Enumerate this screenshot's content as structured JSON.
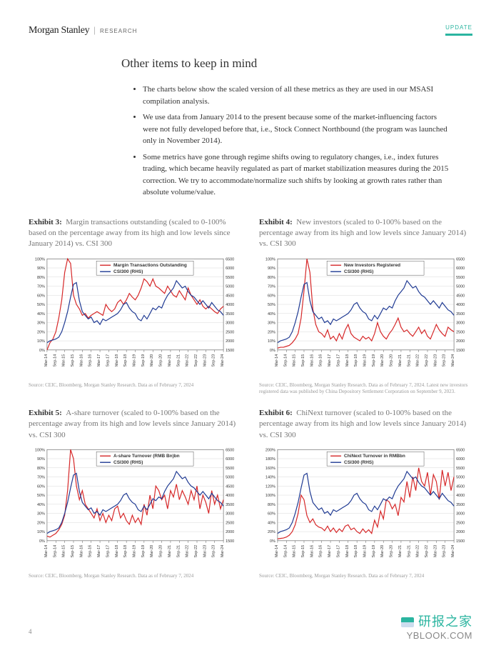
{
  "header": {
    "brand_main": "Morgan Stanley",
    "brand_sep": "|",
    "brand_sub": "RESEARCH",
    "badge": "UPDATE"
  },
  "section_title": "Other items to keep in mind",
  "bullets": [
    "The charts below show the scaled version of all these metrics as they are used in our MSASI compilation analysis.",
    "We use data from January 2014 to the present because some of the market-influencing factors were not fully developed before that, i.e., Stock Connect Northbound (the program was launched only in November 2014).",
    "Some metrics have gone through regime shifts owing to regulatory changes, i.e., index futures trading, which became heavily regulated as part of market stabilization measures during the 2015 correction. We try to accommodate/normalize such shifts by looking at growth rates rather than absolute volume/value."
  ],
  "chart_common": {
    "x_ticks": [
      "Mar-14",
      "Sep-14",
      "Mar-15",
      "Sep-15",
      "Mar-16",
      "Sep-16",
      "Mar-17",
      "Sep-17",
      "Mar-18",
      "Sep-18",
      "Mar-19",
      "Sep-19",
      "Mar-20",
      "Sep-20",
      "Mar-21",
      "Sep-21",
      "Mar-22",
      "Sep-22",
      "Mar-23",
      "Sep-23",
      "Mar-24"
    ],
    "left_ticks": [
      0,
      10,
      20,
      30,
      40,
      50,
      60,
      70,
      80,
      90,
      100
    ],
    "left_ticks_200": [
      0,
      20,
      40,
      60,
      80,
      100,
      120,
      140,
      160,
      180,
      200
    ],
    "right_ticks": [
      1500,
      2000,
      2500,
      3000,
      3500,
      4000,
      4500,
      5000,
      5500,
      6000,
      6500
    ],
    "colors": {
      "series_red": "#d62728",
      "series_blue": "#1f3a93",
      "grid": "#d9d9d9",
      "axis": "#555555",
      "text": "#333333",
      "bg": "#ffffff"
    },
    "axis_fontsize": 6,
    "tick_fontsize": 5.5,
    "legend_fontsize": 6.5
  },
  "exhibits": [
    {
      "num": "Exhibit 3:",
      "title": "Margin transactions outstanding (scaled to 0-100% based on the percentage away from its high and low levels since January 2014) vs. CSI 300",
      "legend": [
        "Margin Transactions Outstanding",
        "CSI300 (RHS)"
      ],
      "left_max": 100,
      "red": [
        0,
        8,
        12,
        20,
        35,
        55,
        85,
        100,
        95,
        60,
        50,
        45,
        38,
        40,
        35,
        38,
        40,
        42,
        40,
        38,
        50,
        45,
        42,
        45,
        52,
        55,
        50,
        55,
        62,
        58,
        55,
        60,
        68,
        78,
        75,
        70,
        78,
        70,
        68,
        65,
        62,
        70,
        65,
        60,
        58,
        65,
        60,
        55,
        68,
        60,
        55,
        50,
        55,
        48,
        45,
        48,
        45,
        42,
        40,
        45,
        48
      ],
      "blue": [
        1900,
        2000,
        2050,
        2100,
        2200,
        2500,
        3000,
        3600,
        4400,
        5100,
        5200,
        4200,
        3600,
        3400,
        3200,
        3300,
        3000,
        3100,
        2900,
        3200,
        3100,
        3200,
        3300,
        3400,
        3500,
        3700,
        4000,
        4100,
        3800,
        3600,
        3500,
        3200,
        3100,
        3400,
        3200,
        3500,
        3800,
        3700,
        3900,
        3800,
        4200,
        4500,
        4700,
        4900,
        5300,
        5100,
        4900,
        5000,
        4700,
        4500,
        4400,
        4200,
        4000,
        4200,
        4000,
        3800,
        4100,
        3900,
        3700,
        3600,
        3400
      ],
      "source": "Source: CEIC, Bloomberg, Morgan Stanley Research. Data as of February 7, 2024"
    },
    {
      "num": "Exhibit 4:",
      "title": "New investors (scaled to 0-100% based on the percentage away from its high and low levels since January 2014) vs. CSI 300",
      "legend": [
        "New Investors Registered",
        "CSI300 (RHS)"
      ],
      "left_max": 100,
      "red": [
        2,
        3,
        3,
        4,
        5,
        8,
        12,
        18,
        35,
        65,
        100,
        85,
        45,
        28,
        20,
        18,
        14,
        22,
        12,
        15,
        10,
        18,
        12,
        22,
        28,
        18,
        14,
        12,
        10,
        15,
        12,
        14,
        10,
        18,
        30,
        20,
        15,
        12,
        18,
        22,
        28,
        35,
        25,
        20,
        22,
        18,
        15,
        20,
        25,
        18,
        22,
        15,
        12,
        20,
        28,
        22,
        18,
        15,
        25,
        22,
        20
      ],
      "blue": [
        1900,
        2000,
        2050,
        2100,
        2200,
        2500,
        3000,
        3600,
        4400,
        5100,
        5200,
        4200,
        3600,
        3400,
        3200,
        3300,
        3000,
        3100,
        2900,
        3200,
        3100,
        3200,
        3300,
        3400,
        3500,
        3700,
        4000,
        4100,
        3800,
        3600,
        3500,
        3200,
        3100,
        3400,
        3200,
        3500,
        3800,
        3700,
        3900,
        3800,
        4200,
        4500,
        4700,
        4900,
        5300,
        5100,
        4900,
        5000,
        4700,
        4500,
        4400,
        4200,
        4000,
        4200,
        4000,
        3800,
        4100,
        3900,
        3700,
        3600,
        3400
      ],
      "source": "Source: CEIC, Bloomberg, Morgan Stanley Research. Data as of February 7, 2024. Latest new investors registered data was published by China Depository Settlement Corporation on September 9, 2023."
    },
    {
      "num": "Exhibit 5:",
      "title": "A-share turnover (scaled to 0-100% based on the percentage away from its high and low levels since January 2014) vs. CSI 300",
      "legend": [
        "A-share Turnover (RMB Bn)bn",
        "CSI300 (RHS)"
      ],
      "left_max": 100,
      "red": [
        5,
        4,
        6,
        8,
        12,
        18,
        28,
        55,
        100,
        90,
        60,
        45,
        55,
        40,
        35,
        30,
        25,
        35,
        22,
        30,
        20,
        28,
        22,
        35,
        38,
        25,
        30,
        22,
        18,
        28,
        20,
        25,
        18,
        40,
        28,
        50,
        35,
        60,
        55,
        45,
        50,
        35,
        55,
        48,
        62,
        45,
        55,
        48,
        40,
        55,
        45,
        60,
        35,
        50,
        42,
        30,
        55,
        40,
        50,
        35,
        45
      ],
      "blue": [
        1900,
        2000,
        2050,
        2100,
        2200,
        2500,
        3000,
        3600,
        4400,
        5100,
        5200,
        4200,
        3600,
        3400,
        3200,
        3300,
        3000,
        3100,
        2900,
        3200,
        3100,
        3200,
        3300,
        3400,
        3500,
        3700,
        4000,
        4100,
        3800,
        3600,
        3500,
        3200,
        3100,
        3400,
        3200,
        3500,
        3800,
        3700,
        3900,
        3800,
        4200,
        4500,
        4700,
        4900,
        5300,
        5100,
        4900,
        5000,
        4700,
        4500,
        4400,
        4200,
        4000,
        4200,
        4000,
        3800,
        4100,
        3900,
        3700,
        3600,
        3400
      ],
      "source": "Source: CEIC, Bloomberg, Morgan Stanley Research. Data as of February 7, 2024"
    },
    {
      "num": "Exhibit 6:",
      "title": "ChiNext turnover (scaled to 0-100% based on the percentage away from its high and low levels since January 2014) vs. CSI 300",
      "legend": [
        "ChiNext Turnover in RMBbn",
        "CSI300 (RHS)"
      ],
      "left_max": 200,
      "red": [
        4,
        5,
        6,
        8,
        12,
        20,
        35,
        60,
        100,
        90,
        55,
        40,
        48,
        35,
        30,
        28,
        22,
        32,
        20,
        28,
        18,
        26,
        20,
        32,
        35,
        24,
        28,
        20,
        16,
        26,
        18,
        24,
        16,
        45,
        30,
        65,
        48,
        90,
        85,
        70,
        80,
        55,
        95,
        85,
        130,
        95,
        140,
        110,
        160,
        130,
        120,
        150,
        100,
        145,
        130,
        90,
        155,
        120,
        150,
        110,
        140
      ],
      "blue": [
        1900,
        2000,
        2050,
        2100,
        2200,
        2500,
        3000,
        3600,
        4400,
        5100,
        5200,
        4200,
        3600,
        3400,
        3200,
        3300,
        3000,
        3100,
        2900,
        3200,
        3100,
        3200,
        3300,
        3400,
        3500,
        3700,
        4000,
        4100,
        3800,
        3600,
        3500,
        3200,
        3100,
        3400,
        3200,
        3500,
        3800,
        3700,
        3900,
        3800,
        4200,
        4500,
        4700,
        4900,
        5300,
        5100,
        4900,
        5000,
        4700,
        4500,
        4400,
        4200,
        4000,
        4200,
        4000,
        3800,
        4100,
        3900,
        3700,
        3600,
        3400
      ],
      "source": "Source: CEIC, Bloomberg, Morgan Stanley Research. Data as of February 7, 2024"
    }
  ],
  "page_number": "4",
  "watermark": {
    "top": "研报之家",
    "bottom": "YBLOOK.COM"
  }
}
